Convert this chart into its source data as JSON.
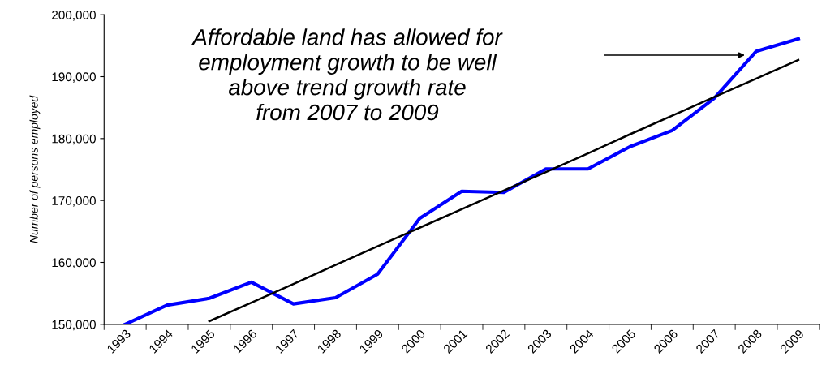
{
  "chart_data": {
    "type": "line",
    "ylabel": "Number of persons employed",
    "categories": [
      "1993",
      "1994",
      "1995",
      "1996",
      "1997",
      "1998",
      "1999",
      "2000",
      "2001",
      "2002",
      "2003",
      "2004",
      "2005",
      "2006",
      "2007",
      "2008",
      "2009"
    ],
    "series": [
      {
        "color": "#0000ff",
        "values": [
          150000,
          153100,
          154200,
          156800,
          153300,
          154300,
          158100,
          167100,
          171500,
          171300,
          175100,
          175100,
          178700,
          181300,
          186500,
          194100,
          196100
        ]
      },
      {
        "color": "#000000",
        "values": [
          null,
          null,
          150500,
          153500,
          156500,
          159600,
          162600,
          165600,
          168600,
          171600,
          174600,
          177600,
          180700,
          183700,
          186700,
          189700,
          192700
        ]
      }
    ],
    "ylim": [
      150000,
      200000
    ],
    "yticks": [
      {
        "value": 150000,
        "label": "150,000"
      },
      {
        "value": 160000,
        "label": "160,000"
      },
      {
        "value": 170000,
        "label": "170,000"
      },
      {
        "value": 180000,
        "label": "180,000"
      },
      {
        "value": 190000,
        "label": "190,000"
      },
      {
        "value": 200000,
        "label": "200,000"
      }
    ],
    "grid": false,
    "annotations": [
      "Affordable land has allowed for\nemployment growth to be well\nabove trend growth rate\nfrom 2007 to 2009"
    ]
  }
}
